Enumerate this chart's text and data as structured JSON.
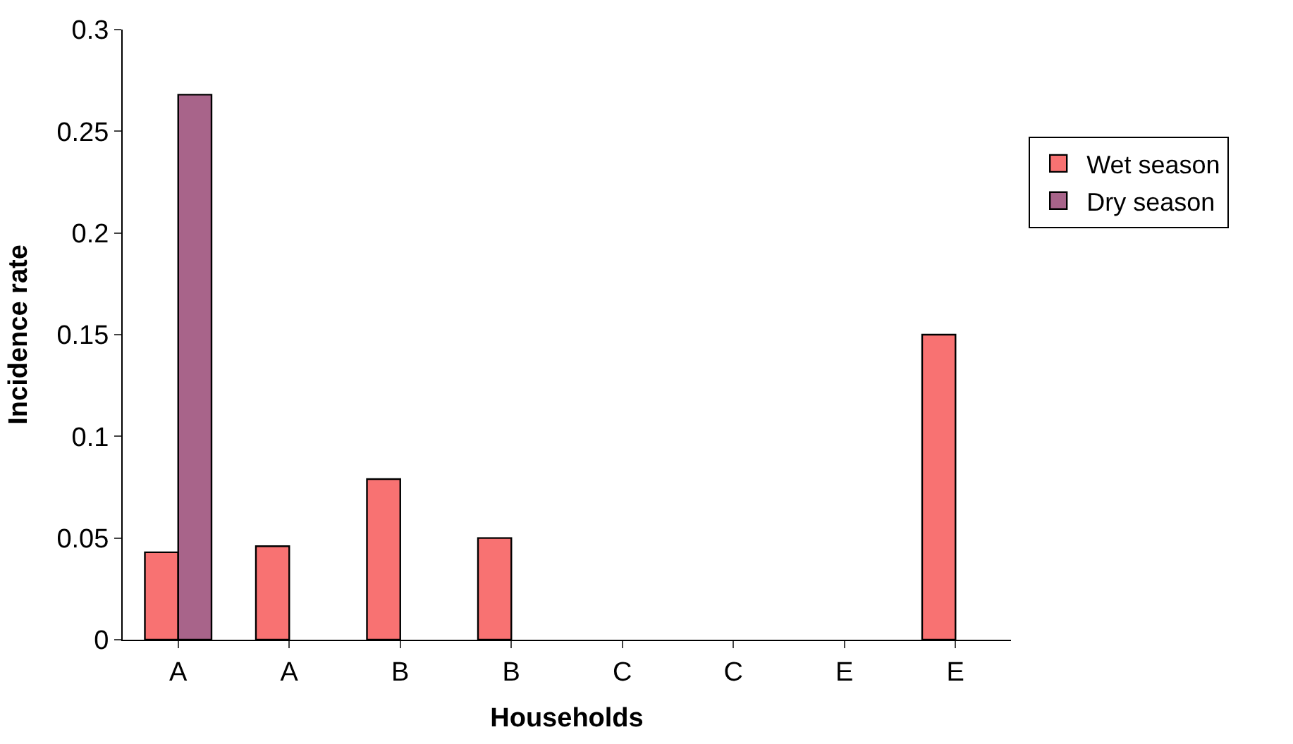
{
  "chart_data": {
    "type": "bar",
    "xlabel": "Households",
    "ylabel": "Incidence rate",
    "categories": [
      "A",
      "A",
      "B",
      "B",
      "C",
      "C",
      "E",
      "E"
    ],
    "series": [
      {
        "name": "Wet season",
        "color": "#f87272",
        "values": [
          0.043,
          0.046,
          0.079,
          0.05,
          null,
          null,
          null,
          0.15
        ]
      },
      {
        "name": "Dry season",
        "color": "#a8648a",
        "values": [
          0.268,
          null,
          null,
          null,
          null,
          null,
          null,
          null
        ]
      }
    ],
    "ylim": [
      0,
      0.3
    ],
    "yticks": [
      0,
      0.05,
      0.1,
      0.15,
      0.2,
      0.25,
      0.3
    ],
    "grid": false,
    "legend": "right"
  }
}
